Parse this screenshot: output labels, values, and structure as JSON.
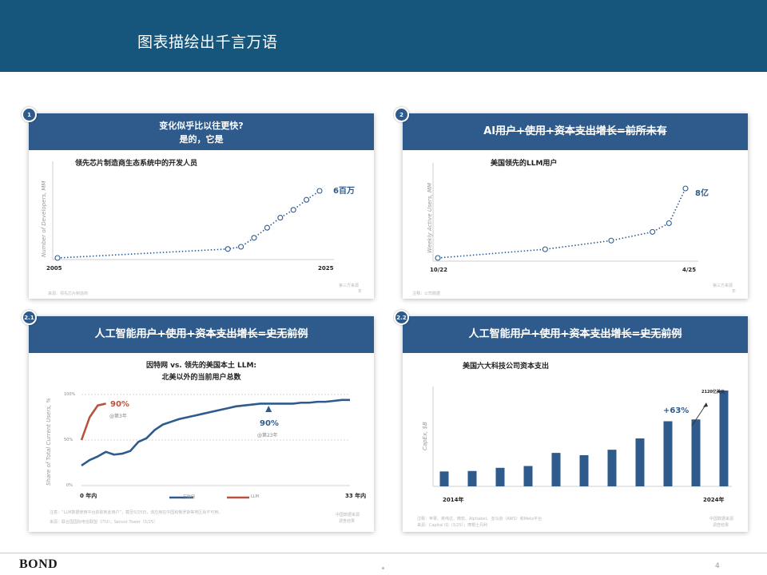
{
  "page": {
    "title": "图表描绘出千言万语",
    "page_number": "4",
    "logo": "BOND"
  },
  "colors": {
    "banner": "#17567c",
    "header": "#2e5a8c",
    "accent_red": "#b6533e"
  },
  "panels": [
    {
      "badge": "1",
      "header_line1": "变化似乎比以往更快?",
      "header_line2": "是的，它是",
      "chart_title": "领先芯片制造商生态系统中的开发人员",
      "annotation": "6百万",
      "source": "来源：领先芯片制造商",
      "note": "第三方来源",
      "note_sub": "年"
    },
    {
      "badge": "2",
      "header_plain": "AI",
      "header_strike": "用户+使用+资本支出增长=前所未有",
      "chart_title": "美国领先的LLM用户",
      "annotation": "8亿",
      "source": "注释：公司数据",
      "note": "第三方来源",
      "note_sub": "年"
    },
    {
      "badge": "2.1",
      "header_plain": "人工智能",
      "header_strike": "用户+使用+资本支出增长=史无前例",
      "chart_title_line1": "因特网 vs. 领先的美国本土 LLM:",
      "chart_title_line2": "北美以外的当前用户总数",
      "annotation_red": "90%",
      "annotation_red_sub": "@第3年",
      "annotation_blue": "90%",
      "annotation_blue_sub": "@第23年",
      "note": "注意：“LLM数据使用平台获取到此用户”，截至5/25日，该应用在中国和俄罗斯等地区尚不可用。",
      "source": "来源：联合国国际电信联盟（ITU）；Sensor Tower（5/25）",
      "side_note": "中国数据来源",
      "side_note_sub": "调查结果"
    },
    {
      "badge": "2.2",
      "header_plain": "人工智能",
      "header_strike": "用户+使用+资本支出增长=史无前例",
      "chart_title": "美国六大科技公司资本支出",
      "annotation_growth": "+63%",
      "annotation_top": "2120亿美元",
      "note": "注释：苹果、英伟达、微软、Alphabet、亚马逊（AWS）和Meta平台",
      "source": "来源：Capital IQ（3/25）；摩根士丹利",
      "side_note": "中国数据来源",
      "side_note_sub": "调查结果"
    }
  ],
  "chart_data": [
    {
      "type": "line",
      "ylabel": "Number of Developers, MM",
      "x_tick_labels": [
        "2005",
        "2025"
      ],
      "x": [
        2005,
        2018,
        2019,
        2020,
        2021,
        2022,
        2023,
        2024,
        2025
      ],
      "values": [
        0.0,
        0.8,
        1.0,
        1.8,
        2.7,
        3.6,
        4.3,
        5.2,
        6.0
      ],
      "ylim": [
        0,
        7
      ]
    },
    {
      "type": "line",
      "ylabel": "Weekly Active Users, MM",
      "x_tick_labels": [
        "10/22",
        "4/25"
      ],
      "x": [
        0,
        13,
        21,
        26,
        28,
        30
      ],
      "values": [
        0,
        100,
        200,
        300,
        400,
        800
      ],
      "ylim": [
        0,
        900
      ]
    },
    {
      "type": "line",
      "ylabel": "Share of Total Current Users, %",
      "y_tick_labels": [
        "100%",
        "50%",
        "0%"
      ],
      "x_tick_labels": [
        "0 年内",
        "33 年内"
      ],
      "ylim": [
        0,
        100
      ],
      "series": [
        {
          "name": "互联网",
          "color": "#2e5a8c",
          "x": [
            0,
            1,
            2,
            3,
            4,
            5,
            6,
            7,
            8,
            9,
            10,
            11,
            12,
            13,
            14,
            15,
            16,
            17,
            18,
            19,
            20,
            21,
            22,
            23,
            24,
            25,
            26,
            27,
            28,
            29,
            30,
            31,
            32,
            33
          ],
          "values": [
            22,
            28,
            32,
            37,
            34,
            35,
            38,
            48,
            52,
            61,
            67,
            70,
            73,
            75,
            77,
            79,
            81,
            83,
            85,
            87,
            88,
            89,
            90,
            90,
            90,
            90,
            90,
            91,
            91,
            92,
            92,
            93,
            94,
            94
          ]
        },
        {
          "name": "LLM",
          "color": "#b6533e",
          "x": [
            0,
            1,
            2,
            3
          ],
          "values": [
            50,
            75,
            88,
            90
          ]
        }
      ]
    },
    {
      "type": "bar",
      "ylabel": "CapEx, $B",
      "x_tick_labels": [
        "2014年",
        "2024年"
      ],
      "categories": [
        "2014",
        "2015",
        "2016",
        "2017",
        "2018",
        "2019",
        "2020",
        "2021",
        "2022",
        "2023",
        "2024"
      ],
      "values": [
        33,
        34,
        41,
        45,
        74,
        69,
        81,
        106,
        144,
        148,
        212
      ],
      "ylim": [
        0,
        250
      ]
    }
  ]
}
